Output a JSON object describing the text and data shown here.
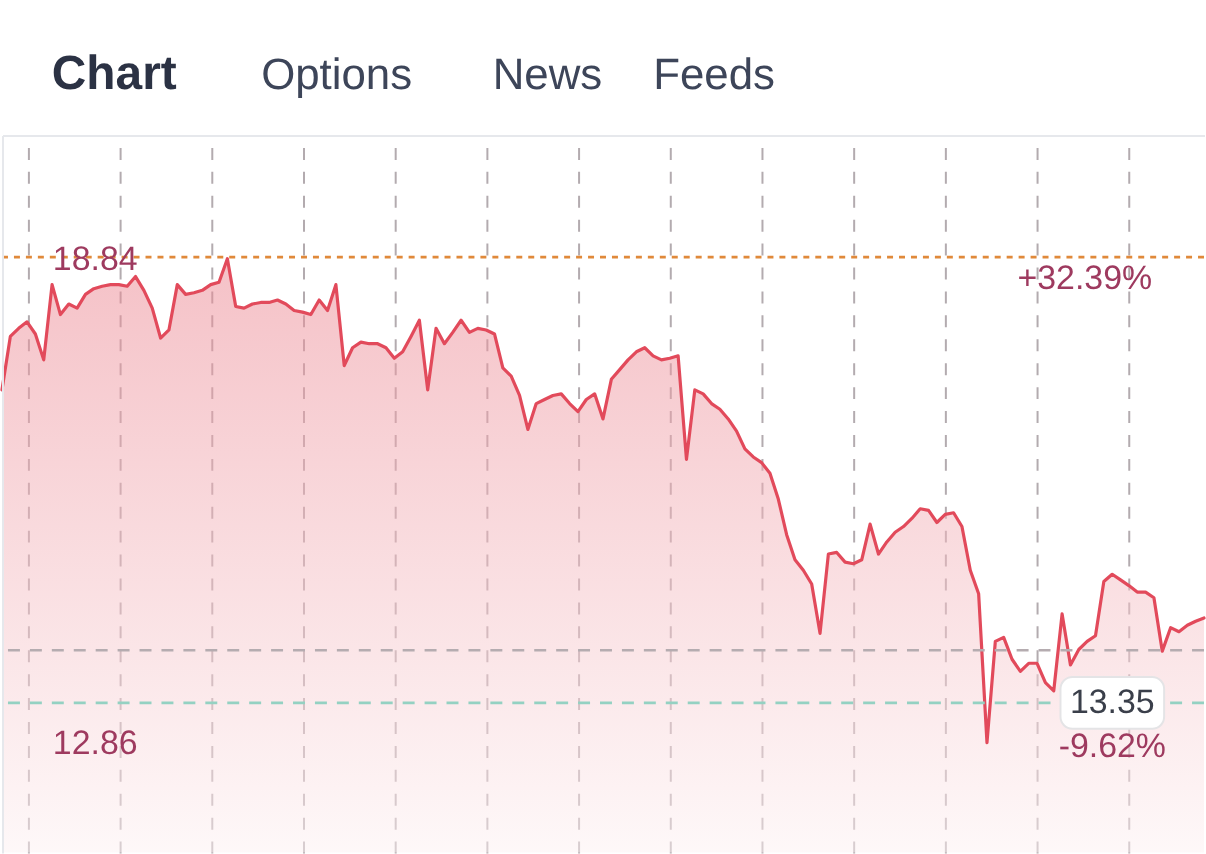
{
  "chart_data": {
    "type": "area",
    "annotations": [
      "Chart",
      "Options",
      "News",
      "Feeds",
      {
        "text": "+32.39%",
        "y": 18.86
      }
    ],
    "categories": [
      null,
      null,
      null,
      null,
      null,
      null,
      null,
      null,
      null,
      null,
      null,
      null,
      null,
      null,
      null,
      null,
      null,
      null,
      null,
      null,
      null,
      null,
      null,
      null,
      null,
      null,
      null,
      null,
      null,
      null,
      null,
      null,
      null,
      null,
      null,
      null,
      null,
      null,
      null,
      null,
      null,
      null,
      null,
      null,
      null,
      null,
      null,
      null,
      null,
      null,
      null,
      null,
      null,
      null,
      null,
      null,
      null,
      null,
      null,
      null,
      null,
      null,
      null,
      null,
      null,
      null,
      null,
      null,
      null,
      null,
      null,
      null,
      null,
      null,
      null,
      null,
      null,
      null,
      null,
      null,
      null,
      null,
      null,
      null,
      null,
      null,
      null,
      null,
      null,
      null,
      null,
      null,
      null,
      null,
      null,
      null,
      null,
      null,
      null,
      null,
      null,
      null,
      null,
      null,
      null,
      null,
      null,
      null,
      null,
      null,
      null,
      null,
      null,
      null,
      null,
      null,
      null,
      null,
      null,
      null,
      null,
      null,
      null,
      null,
      null,
      null,
      null,
      null,
      null,
      null,
      null,
      null,
      null,
      null,
      null,
      null,
      null,
      null,
      null,
      null,
      null,
      null,
      null,
      null,
      null
    ],
    "values": [
      17.22,
      17.88,
      17.98,
      18.06,
      17.91,
      17.59,
      18.52,
      18.15,
      18.28,
      18.23,
      18.4,
      18.47,
      18.5,
      18.52,
      18.52,
      18.5,
      18.62,
      18.45,
      18.23,
      17.86,
      17.96,
      18.52,
      18.4,
      18.42,
      18.45,
      18.52,
      18.55,
      18.84,
      18.25,
      18.23,
      18.28,
      18.3,
      18.3,
      18.33,
      18.28,
      18.2,
      18.18,
      18.15,
      18.33,
      18.2,
      18.52,
      17.52,
      17.74,
      17.81,
      17.79,
      17.79,
      17.74,
      17.61,
      17.69,
      17.88,
      18.08,
      17.22,
      17.98,
      17.79,
      17.93,
      18.08,
      17.93,
      17.98,
      17.96,
      17.91,
      17.49,
      17.39,
      17.15,
      16.73,
      17.05,
      17.1,
      17.15,
      17.17,
      17.05,
      16.95,
      17.1,
      17.17,
      16.86,
      17.35,
      17.47,
      17.59,
      17.69,
      17.74,
      17.64,
      17.59,
      17.61,
      17.64,
      16.36,
      17.22,
      17.17,
      17.05,
      16.98,
      16.86,
      16.71,
      16.49,
      16.39,
      16.32,
      16.19,
      15.87,
      15.43,
      15.12,
      14.99,
      14.82,
      14.21,
      15.19,
      15.21,
      15.09,
      15.07,
      15.12,
      15.56,
      15.19,
      15.34,
      15.46,
      15.53,
      15.63,
      15.75,
      15.73,
      15.58,
      15.68,
      15.7,
      15.53,
      14.99,
      14.7,
      12.86,
      14.11,
      14.16,
      13.89,
      13.74,
      13.84,
      13.84,
      13.6,
      13.5,
      14.45,
      13.82,
      14.01,
      14.11,
      14.18,
      14.85,
      14.94,
      14.87,
      14.8,
      14.72,
      14.72,
      14.65,
      13.99,
      14.28,
      14.23,
      14.31,
      14.36,
      14.4
    ],
    "color": "#e24a5b",
    "ylim": [
      11.5,
      20.37
    ],
    "yticks": [
      18.84,
      12.86
    ],
    "grid": "x",
    "tick_labels": "y",
    "ref_lines": [
      {
        "axis": "y",
        "value": 18.86,
        "color": "#e0893a",
        "line_style": "dotted"
      },
      {
        "axis": "y",
        "value": 14.0,
        "color": "#b5acb0",
        "line_style": "dashed"
      },
      {
        "axis": "y",
        "value": 13.35,
        "label": "13.35\n-9.62%",
        "color": "#94d1c2",
        "line_style": "dashed"
      }
    ]
  }
}
